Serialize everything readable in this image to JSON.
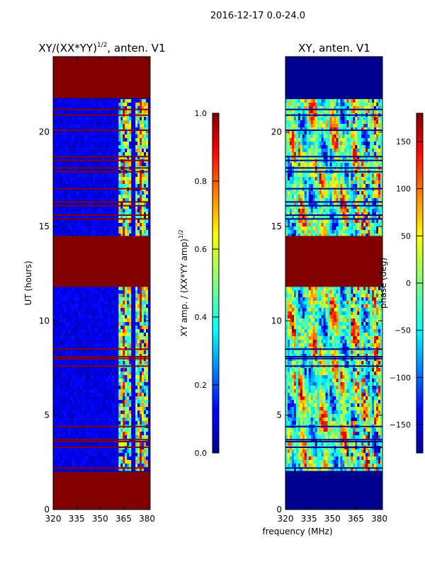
{
  "suptitle": "2016-12-17 0.0-24.0",
  "chart_data": [
    {
      "type": "heatmap",
      "title_main": "XY/(XX*YY)",
      "title_exp": "1/2",
      "title_rest": ", anten. V1",
      "xlabel": "",
      "ylabel": "UT (hours)",
      "xlim": [
        320,
        382
      ],
      "ylim": [
        0,
        24
      ],
      "xticks": [
        320,
        335,
        350,
        365,
        380
      ],
      "yticks": [
        0,
        5,
        10,
        15,
        20
      ],
      "colorbar": {
        "label_main": "XY amp. / (XX*YY amp)",
        "label_exp": "1/2",
        "range": [
          0.0,
          1.0
        ],
        "ticks": [
          "0.0",
          "0.2",
          "0.4",
          "0.6",
          "0.8",
          "1.0"
        ],
        "tick_values": [
          0.0,
          0.2,
          0.4,
          0.6,
          0.8,
          1.0
        ]
      },
      "flagged_hours": [
        [
          0.0,
          2.0
        ],
        [
          11.8,
          14.5
        ],
        [
          21.8,
          24.0
        ]
      ],
      "flagged_lines": [
        2.2,
        3.3,
        3.6,
        3.7,
        4.4,
        7.6,
        8.0,
        8.1,
        8.5,
        15.4,
        15.6,
        16.1,
        16.3,
        17.0,
        17.9,
        18.1,
        18.5,
        18.7,
        20.1,
        20.9,
        21.2
      ],
      "bright_columns_mhz": [
        [
          361.5,
          370.5
        ],
        [
          373,
          381
        ]
      ]
    },
    {
      "type": "heatmap",
      "title": "XY, anten. V1",
      "xlabel": "frequency (MHz)",
      "ylabel": "",
      "xlim": [
        320,
        382
      ],
      "ylim": [
        0,
        24
      ],
      "xticks": [
        320,
        335,
        350,
        365,
        380
      ],
      "yticks": [
        0,
        5,
        10,
        15,
        20
      ],
      "colorbar": {
        "label": "phase (deg)",
        "range": [
          -180,
          180
        ],
        "ticks": [
          "150",
          "100",
          "50",
          "0",
          "−50",
          "−100",
          "−150"
        ],
        "tick_values": [
          150,
          100,
          50,
          0,
          -50,
          -100,
          -150
        ]
      },
      "flagged_hours": [
        [
          11.8,
          14.5
        ]
      ],
      "blank_hours": [
        [
          0.0,
          2.0
        ],
        [
          21.8,
          24.0
        ]
      ]
    }
  ]
}
